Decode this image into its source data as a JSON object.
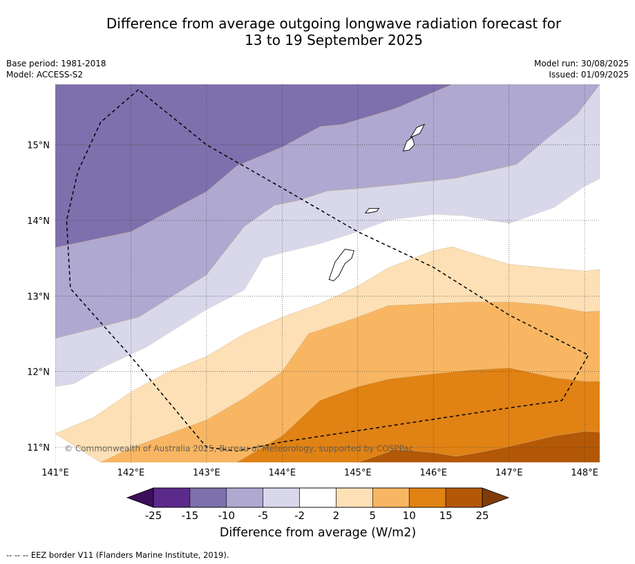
{
  "header": {
    "title_line1": "Difference from average outgoing longwave radiation forecast for",
    "title_line2": "13 to 19 September 2025",
    "base_period": "Base period: 1981-2018",
    "model": "Model: ACCESS-S2",
    "model_run": "Model run: 30/08/2025",
    "issued": "Issued: 01/09/2025"
  },
  "map": {
    "copyright": "© Commonwealth of Australia 2025, Bureau of Meteorology, supported by COSPPac"
  },
  "colorbar": {
    "label": "Difference from average (W/m2)",
    "ticks": [
      "-25",
      "-15",
      "-10",
      "-5",
      "-2",
      "2",
      "5",
      "10",
      "15",
      "25"
    ],
    "colors": [
      "#3b0f5c",
      "#5c2a8c",
      "#7d70ad",
      "#afa8d0",
      "#d9d8eb",
      "#ffffff",
      "#fde0b5",
      "#f9b662",
      "#e08214",
      "#b35806",
      "#7f3b08"
    ]
  },
  "footer": {
    "note": "--  --  -- EEZ border V11 (Flanders Marine Institute, 2019)."
  },
  "chart_data": {
    "type": "heatmap",
    "title": "Difference from average outgoing longwave radiation forecast for 13 to 19 September 2025",
    "x_ticks": [
      "141°E",
      "142°E",
      "143°E",
      "144°E",
      "145°E",
      "146°E",
      "147°E",
      "148°E"
    ],
    "y_ticks": [
      "11°N",
      "12°N",
      "13°N",
      "14°N",
      "15°N"
    ],
    "xlim": [
      141.0,
      148.2
    ],
    "ylim": [
      10.8,
      15.8
    ],
    "levels": [
      -25,
      -15,
      -10,
      -5,
      -2,
      2,
      5,
      10,
      15,
      25
    ],
    "units": "W/m2",
    "grid": true,
    "bands": [
      {
        "range": [
          -15,
          -10
        ],
        "color": "#7d70ad",
        "upper": [
          [
            141.0,
            15.8
          ],
          [
            146.25,
            15.8
          ]
        ],
        "lower": [
          [
            141.0,
            13.64
          ],
          [
            142.0,
            13.85
          ],
          [
            143.0,
            14.38
          ],
          [
            143.4,
            14.72
          ],
          [
            144.0,
            14.97
          ],
          [
            144.5,
            15.24
          ],
          [
            144.8,
            15.27
          ],
          [
            145.5,
            15.48
          ],
          [
            146.25,
            15.8
          ]
        ]
      },
      {
        "range": [
          -10,
          -5
        ],
        "color": "#afa8d0",
        "upper": [
          [
            141.0,
            13.64
          ],
          [
            142.0,
            13.85
          ],
          [
            143.0,
            14.38
          ],
          [
            143.4,
            14.72
          ],
          [
            144.0,
            14.97
          ],
          [
            144.5,
            15.24
          ],
          [
            144.8,
            15.27
          ],
          [
            145.5,
            15.48
          ],
          [
            146.25,
            15.8
          ],
          [
            148.2,
            15.8
          ]
        ],
        "lower": [
          [
            141.0,
            12.44
          ],
          [
            142.1,
            12.72
          ],
          [
            143.0,
            13.28
          ],
          [
            143.5,
            13.92
          ],
          [
            143.9,
            14.2
          ],
          [
            144.2,
            14.26
          ],
          [
            144.6,
            14.39
          ],
          [
            145.0,
            14.42
          ],
          [
            145.5,
            14.47
          ],
          [
            146.3,
            14.56
          ],
          [
            147.1,
            14.74
          ],
          [
            147.5,
            15.08
          ],
          [
            147.9,
            15.4
          ],
          [
            148.2,
            15.8
          ]
        ]
      },
      {
        "range": [
          -5,
          -2
        ],
        "color": "#d9d8eb",
        "upper": [
          [
            141.0,
            12.44
          ],
          [
            142.1,
            12.72
          ],
          [
            143.0,
            13.28
          ],
          [
            143.5,
            13.92
          ],
          [
            143.9,
            14.2
          ],
          [
            144.2,
            14.26
          ],
          [
            144.6,
            14.39
          ],
          [
            145.0,
            14.42
          ],
          [
            145.5,
            14.47
          ],
          [
            146.3,
            14.56
          ],
          [
            147.1,
            14.74
          ],
          [
            147.5,
            15.08
          ],
          [
            147.9,
            15.4
          ],
          [
            148.2,
            15.8
          ]
        ],
        "lower": [
          [
            141.0,
            11.8
          ],
          [
            141.25,
            11.84
          ],
          [
            141.6,
            12.04
          ],
          [
            142.2,
            12.32
          ],
          [
            143.0,
            12.82
          ],
          [
            143.5,
            13.08
          ],
          [
            143.75,
            13.5
          ],
          [
            144.0,
            13.57
          ],
          [
            144.5,
            13.69
          ],
          [
            145.0,
            13.85
          ],
          [
            145.4,
            14.0
          ],
          [
            146.0,
            14.08
          ],
          [
            146.4,
            14.06
          ],
          [
            146.75,
            14.0
          ],
          [
            147.0,
            13.96
          ],
          [
            147.6,
            14.17
          ],
          [
            148.0,
            14.45
          ],
          [
            148.2,
            14.55
          ]
        ]
      },
      {
        "range": [
          -2,
          2
        ],
        "color": "#ffffff",
        "upper": [
          [
            141.0,
            11.8
          ],
          [
            141.25,
            11.84
          ],
          [
            141.6,
            12.04
          ],
          [
            142.2,
            12.32
          ],
          [
            143.0,
            12.82
          ],
          [
            143.5,
            13.08
          ],
          [
            143.75,
            13.5
          ],
          [
            144.0,
            13.57
          ],
          [
            144.5,
            13.69
          ],
          [
            145.0,
            13.85
          ],
          [
            145.4,
            14.0
          ],
          [
            146.0,
            14.08
          ],
          [
            146.4,
            14.06
          ],
          [
            146.75,
            14.0
          ],
          [
            147.0,
            13.96
          ],
          [
            147.6,
            14.17
          ],
          [
            148.0,
            14.45
          ],
          [
            148.2,
            14.55
          ]
        ],
        "lower": [
          [
            141.0,
            11.18
          ],
          [
            141.5,
            11.39
          ],
          [
            142.0,
            11.73
          ],
          [
            142.5,
            12.0
          ],
          [
            143.0,
            12.2
          ],
          [
            143.5,
            12.5
          ],
          [
            144.0,
            12.72
          ],
          [
            144.5,
            12.9
          ],
          [
            145.0,
            13.13
          ],
          [
            145.4,
            13.37
          ],
          [
            146.0,
            13.6
          ],
          [
            146.25,
            13.65
          ],
          [
            146.5,
            13.57
          ],
          [
            147.0,
            13.42
          ],
          [
            147.5,
            13.37
          ],
          [
            148.0,
            13.33
          ],
          [
            148.2,
            13.35
          ]
        ]
      },
      {
        "range": [
          2,
          5
        ],
        "color": "#fde0b5",
        "upper": [
          [
            141.0,
            11.18
          ],
          [
            141.5,
            11.39
          ],
          [
            142.0,
            11.73
          ],
          [
            142.5,
            12.0
          ],
          [
            143.0,
            12.2
          ],
          [
            143.5,
            12.5
          ],
          [
            144.0,
            12.72
          ],
          [
            144.5,
            12.9
          ],
          [
            145.0,
            13.13
          ],
          [
            145.4,
            13.37
          ],
          [
            146.0,
            13.6
          ],
          [
            146.25,
            13.65
          ],
          [
            146.5,
            13.57
          ],
          [
            147.0,
            13.42
          ],
          [
            147.5,
            13.37
          ],
          [
            148.0,
            13.33
          ],
          [
            148.2,
            13.35
          ]
        ],
        "lower": [
          [
            141.6,
            10.8
          ],
          [
            142.0,
            10.99
          ],
          [
            143.0,
            11.36
          ],
          [
            143.5,
            11.65
          ],
          [
            144.0,
            12.0
          ],
          [
            144.35,
            12.5
          ],
          [
            144.8,
            12.65
          ],
          [
            145.0,
            12.72
          ],
          [
            145.4,
            12.87
          ],
          [
            146.0,
            12.9
          ],
          [
            146.5,
            12.92
          ],
          [
            147.0,
            12.92
          ],
          [
            147.5,
            12.88
          ],
          [
            148.0,
            12.79
          ],
          [
            148.2,
            12.8
          ]
        ]
      },
      {
        "range": [
          5,
          10
        ],
        "color": "#f9b662",
        "upper": [
          [
            141.6,
            10.8
          ],
          [
            142.0,
            10.99
          ],
          [
            143.0,
            11.36
          ],
          [
            143.5,
            11.65
          ],
          [
            144.0,
            12.0
          ],
          [
            144.35,
            12.5
          ],
          [
            144.8,
            12.65
          ],
          [
            145.0,
            12.72
          ],
          [
            145.4,
            12.87
          ],
          [
            146.0,
            12.9
          ],
          [
            146.5,
            12.92
          ],
          [
            147.0,
            12.92
          ],
          [
            147.5,
            12.88
          ],
          [
            148.0,
            12.79
          ],
          [
            148.2,
            12.8
          ]
        ],
        "lower": [
          [
            143.4,
            10.8
          ],
          [
            144.0,
            11.15
          ],
          [
            144.5,
            11.62
          ],
          [
            145.0,
            11.8
          ],
          [
            145.4,
            11.9
          ],
          [
            146.0,
            11.97
          ],
          [
            146.5,
            12.02
          ],
          [
            147.0,
            12.05
          ],
          [
            147.6,
            11.92
          ],
          [
            148.0,
            11.87
          ],
          [
            148.2,
            11.87
          ]
        ]
      },
      {
        "range": [
          10,
          15
        ],
        "color": "#e08214",
        "upper": [
          [
            143.4,
            10.8
          ],
          [
            144.0,
            11.15
          ],
          [
            144.5,
            11.62
          ],
          [
            145.0,
            11.8
          ],
          [
            145.4,
            11.9
          ],
          [
            146.0,
            11.97
          ],
          [
            146.5,
            12.02
          ],
          [
            147.0,
            12.05
          ],
          [
            147.6,
            11.92
          ],
          [
            148.0,
            11.87
          ],
          [
            148.2,
            11.87
          ]
        ],
        "lower": [
          [
            145.0,
            10.8
          ],
          [
            145.5,
            10.97
          ],
          [
            146.0,
            10.93
          ],
          [
            146.3,
            10.88
          ],
          [
            146.6,
            10.93
          ],
          [
            147.0,
            11.01
          ],
          [
            147.6,
            11.15
          ],
          [
            148.0,
            11.21
          ],
          [
            148.2,
            11.2
          ]
        ]
      },
      {
        "range": [
          15,
          25
        ],
        "color": "#b35806",
        "upper": [
          [
            145.0,
            10.8
          ],
          [
            145.5,
            10.97
          ],
          [
            146.0,
            10.93
          ],
          [
            146.3,
            10.88
          ],
          [
            146.6,
            10.93
          ],
          [
            147.0,
            11.01
          ],
          [
            147.6,
            11.15
          ],
          [
            148.0,
            11.21
          ],
          [
            148.2,
            11.2
          ]
        ],
        "lower": [
          [
            145.0,
            10.8
          ],
          [
            148.2,
            10.8
          ]
        ]
      }
    ],
    "eez_border": [
      [
        142.1,
        15.73
      ],
      [
        141.6,
        15.3
      ],
      [
        141.3,
        14.65
      ],
      [
        141.15,
        14.0
      ],
      [
        141.2,
        13.1
      ],
      [
        142.0,
        12.2
      ],
      [
        143.0,
        11.0
      ],
      [
        143.4,
        10.95
      ],
      [
        144.0,
        11.07
      ],
      [
        145.0,
        11.22
      ],
      [
        146.0,
        11.37
      ],
      [
        147.0,
        11.52
      ],
      [
        147.7,
        11.62
      ],
      [
        148.05,
        12.22
      ],
      [
        147.0,
        12.75
      ],
      [
        146.0,
        13.38
      ],
      [
        145.0,
        13.85
      ],
      [
        144.0,
        14.43
      ],
      [
        143.0,
        15.0
      ],
      [
        142.1,
        15.73
      ]
    ],
    "islands": [
      [
        [
          144.62,
          13.22
        ],
        [
          144.7,
          13.45
        ],
        [
          144.83,
          13.62
        ],
        [
          144.95,
          13.6
        ],
        [
          144.92,
          13.5
        ],
        [
          144.83,
          13.43
        ],
        [
          144.75,
          13.27
        ],
        [
          144.68,
          13.2
        ]
      ],
      [
        [
          145.1,
          14.1
        ],
        [
          145.15,
          14.16
        ],
        [
          145.28,
          14.16
        ],
        [
          145.25,
          14.12
        ],
        [
          145.15,
          14.1
        ]
      ],
      [
        [
          145.6,
          14.92
        ],
        [
          145.65,
          15.05
        ],
        [
          145.72,
          15.1
        ],
        [
          145.75,
          15.0
        ],
        [
          145.68,
          14.93
        ]
      ],
      [
        [
          145.7,
          15.1
        ],
        [
          145.78,
          15.23
        ],
        [
          145.88,
          15.27
        ],
        [
          145.82,
          15.15
        ],
        [
          145.75,
          15.12
        ]
      ]
    ]
  }
}
